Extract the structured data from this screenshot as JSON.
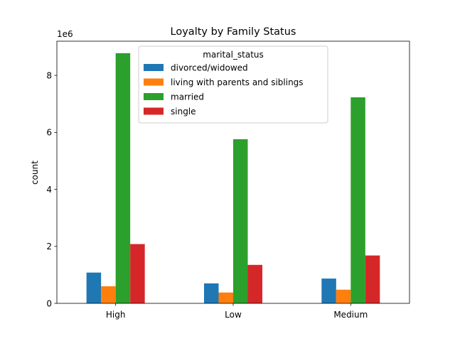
{
  "chart_data": {
    "type": "bar",
    "title": "Loyalty by Family Status",
    "xlabel": "",
    "ylabel": "count",
    "y_offset_label": "1e6",
    "categories": [
      "High",
      "Low",
      "Medium"
    ],
    "ylim": [
      0,
      9200000
    ],
    "yticks": [
      0,
      2000000,
      4000000,
      6000000,
      8000000
    ],
    "ytick_labels": [
      "0",
      "2",
      "4",
      "6",
      "8"
    ],
    "legend_title": "marital_status",
    "legend_position": "upper-center",
    "grid": false,
    "series": [
      {
        "name": "divorced/widowed",
        "color": "#1f77b4",
        "values": [
          1080000,
          700000,
          870000
        ]
      },
      {
        "name": "living with parents and siblings",
        "color": "#ff7f0e",
        "values": [
          600000,
          380000,
          480000
        ]
      },
      {
        "name": "married",
        "color": "#2ca02c",
        "values": [
          8780000,
          5760000,
          7230000
        ]
      },
      {
        "name": "single",
        "color": "#d62728",
        "values": [
          2080000,
          1350000,
          1680000
        ]
      }
    ]
  }
}
